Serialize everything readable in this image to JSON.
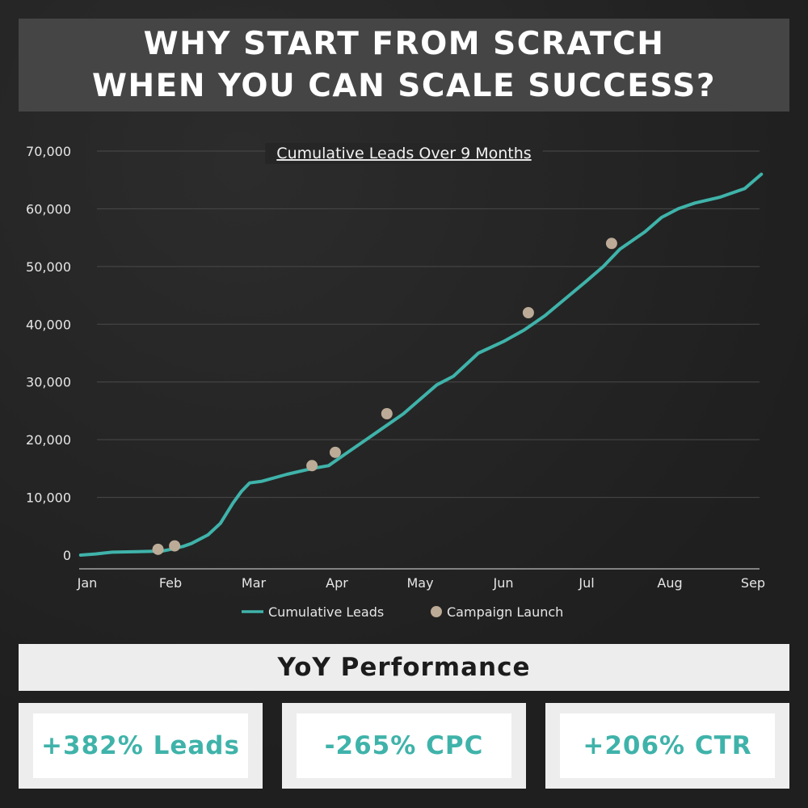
{
  "header": {
    "line1": "WHY START FROM SCRATCH",
    "line2": "WHEN YOU CAN SCALE SUCCESS?"
  },
  "chart_data": {
    "type": "line",
    "title": "Cumulative Leads Over 9 Months",
    "xlabel": "",
    "ylabel": "",
    "x_ticks": [
      "Jan",
      "Feb",
      "Mar",
      "Apr",
      "May",
      "Jun",
      "Jul",
      "Aug",
      "Sep"
    ],
    "y_ticks": [
      "0",
      "10,000",
      "20,000",
      "30,000",
      "40,000",
      "50,000",
      "60,000",
      "70,000"
    ],
    "xlim": [
      0,
      8
    ],
    "ylim": [
      0,
      70000
    ],
    "grid": true,
    "legend_position": "bottom",
    "series": [
      {
        "name": "Cumulative Leads",
        "color": "#3fb3aa",
        "x": [
          -0.08,
          0.1,
          0.3,
          0.6,
          0.9,
          1.0,
          1.15,
          1.25,
          1.45,
          1.6,
          1.75,
          1.85,
          1.95,
          2.1,
          2.4,
          2.7,
          2.9,
          3.0,
          3.15,
          3.35,
          3.6,
          3.8,
          4.0,
          4.2,
          4.4,
          4.7,
          5.0,
          5.25,
          5.5,
          5.75,
          6.0,
          6.2,
          6.4,
          6.7,
          6.9,
          7.1,
          7.3,
          7.6,
          7.9,
          8.1
        ],
        "y": [
          0,
          200,
          500,
          600,
          700,
          1000,
          1500,
          2000,
          3500,
          5500,
          9000,
          11000,
          12500,
          12800,
          14000,
          15000,
          15500,
          16500,
          18000,
          20000,
          22500,
          24500,
          27000,
          29500,
          31000,
          35000,
          37000,
          39000,
          41500,
          44500,
          47500,
          50000,
          53000,
          56000,
          58500,
          60000,
          61000,
          62000,
          63500,
          66000
        ]
      },
      {
        "name": "Campaign Launch",
        "type": "scatter",
        "color": "#bcab97",
        "x": [
          0.85,
          1.05,
          2.7,
          2.98,
          3.6,
          5.3,
          6.3
        ],
        "y": [
          1000,
          1600,
          15500,
          17800,
          24500,
          42000,
          54000
        ]
      }
    ]
  },
  "performance": {
    "title": "YoY Performance",
    "stats": [
      "+382% Leads",
      "-265% CPC",
      "+206% CTR"
    ]
  }
}
